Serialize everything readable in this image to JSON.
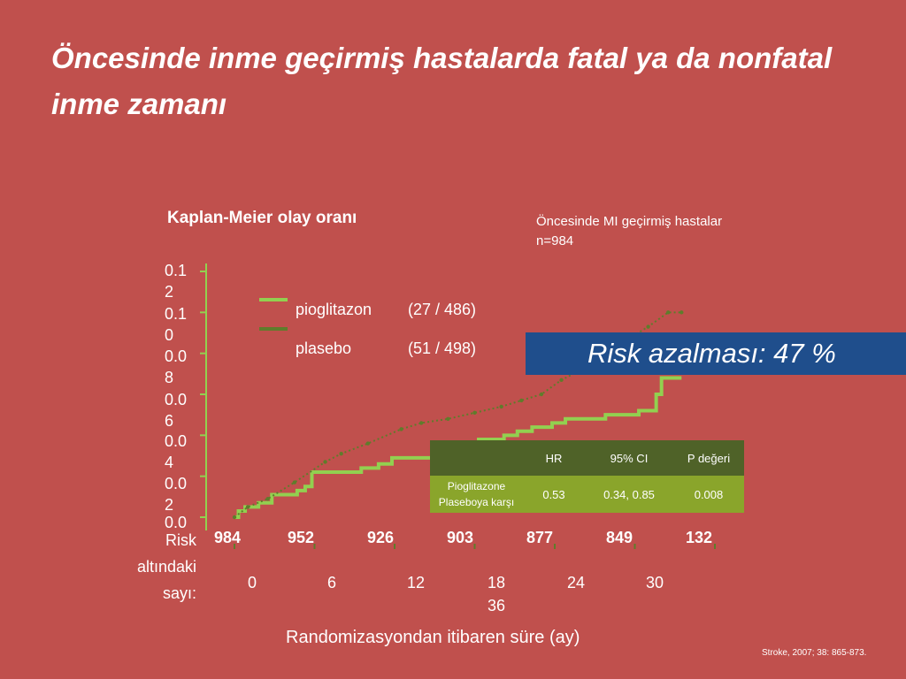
{
  "slide": {
    "title": "Öncesinde inme geçirmiş hastalarda fatal ya da nonfatal inme zamanı",
    "chart_title": "Kaplan-Meier olay oranı",
    "subtitle_line1": "Öncesinde MI geçirmiş hastalar",
    "subtitle_line2": "n=984",
    "banner": "Risk azalması: 47 %",
    "citation": "Stroke, 2007; 38: 865-873."
  },
  "legend": [
    {
      "name": "pioglitazon",
      "count": "(27 / 486)",
      "color": "#92d050"
    },
    {
      "name": "plasebo",
      "count": "(51 / 498)",
      "color": "#5f7c2b"
    }
  ],
  "risk_table": {
    "label_lines": [
      "Risk",
      "altındaki",
      "sayı:"
    ],
    "values": [
      "984",
      "952",
      "926",
      "903",
      "877",
      "849",
      "132"
    ]
  },
  "stats_table": {
    "headers": [
      "HR",
      "95% CI",
      "P değeri"
    ],
    "row_label_lines": [
      "Pioglitazone",
      "Plaseboya karşı"
    ],
    "values": [
      "0.53",
      "0.34, 0.85",
      "0.008"
    ]
  },
  "chart_data": {
    "type": "line",
    "title": "Kaplan-Meier olay oranı",
    "xlabel": "Randomizasyondan itibaren süre (ay)",
    "ylabel": "",
    "y_tick_labels": [
      [
        "0.0",
        ""
      ],
      [
        "0.0",
        "2"
      ],
      [
        "0.0",
        "4"
      ],
      [
        "0.0",
        "6"
      ],
      [
        "0.0",
        "8"
      ],
      [
        "0.1",
        "0"
      ],
      [
        "0.1",
        "2"
      ]
    ],
    "x_tick_labels": [
      "0",
      "6",
      "12",
      "18",
      "24",
      "30",
      "36"
    ],
    "xlim": [
      0,
      36
    ],
    "ylim": [
      0,
      0.12
    ],
    "series": [
      {
        "name": "pioglitazon",
        "color": "#92d050",
        "style": "step",
        "x": [
          0,
          0.3,
          0.8,
          1.8,
          2.8,
          4.7,
          5.3,
          5.8,
          9.5,
          10.8,
          11.8,
          18.3,
          20.2,
          21.2,
          22.3,
          23.8,
          24.8,
          27.8,
          30.3,
          31.6,
          32.0,
          33.5
        ],
        "y": [
          0,
          0.003,
          0.005,
          0.007,
          0.011,
          0.013,
          0.015,
          0.022,
          0.024,
          0.026,
          0.029,
          0.038,
          0.04,
          0.042,
          0.044,
          0.046,
          0.048,
          0.05,
          0.052,
          0.06,
          0.068,
          0.068
        ]
      },
      {
        "name": "plasebo",
        "color": "#5f7c2b",
        "style": "dotted",
        "x": [
          0,
          1,
          2.5,
          4.5,
          6.8,
          8,
          10,
          12.5,
          14,
          16,
          18,
          20,
          21.5,
          23,
          24.5,
          26,
          28,
          29.5,
          31,
          32.5,
          33.5
        ],
        "y": [
          0,
          0.005,
          0.009,
          0.017,
          0.027,
          0.031,
          0.036,
          0.043,
          0.046,
          0.048,
          0.051,
          0.054,
          0.057,
          0.06,
          0.067,
          0.072,
          0.081,
          0.087,
          0.093,
          0.1,
          0.1
        ]
      }
    ]
  }
}
